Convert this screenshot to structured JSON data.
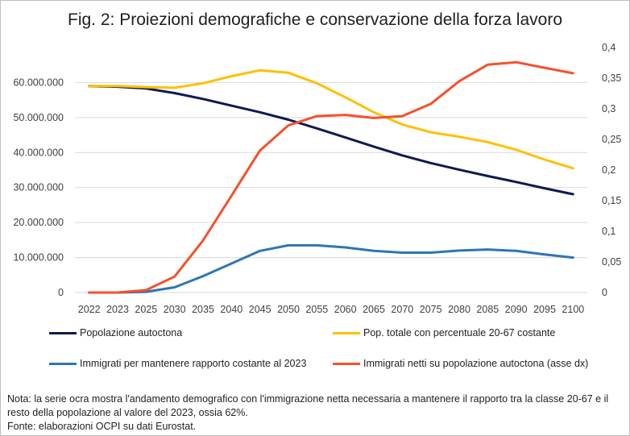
{
  "chart_data": {
    "type": "line",
    "title": "Fig. 2: Proiezioni demografiche e conservazione della forza lavoro",
    "x": [
      "2022",
      "2023",
      "2025",
      "2030",
      "2035",
      "2040",
      "2045",
      "2050",
      "2055",
      "2060",
      "2065",
      "2070",
      "2075",
      "2080",
      "2085",
      "2090",
      "2095",
      "2100"
    ],
    "y_left": {
      "ylim": [
        0,
        70000000
      ],
      "ticks": [
        0,
        10000000,
        20000000,
        30000000,
        40000000,
        50000000,
        60000000
      ],
      "tick_labels": [
        "0",
        "10.000.000",
        "20.000.000",
        "30.000.000",
        "40.000.000",
        "50.000.000",
        "60.000.000"
      ]
    },
    "y_right": {
      "ylim": [
        0,
        0.4
      ],
      "ticks": [
        0,
        0.05,
        0.1,
        0.15,
        0.2,
        0.25,
        0.3,
        0.35,
        0.4
      ],
      "tick_labels": [
        "0",
        "0,05",
        "0,1",
        "0,15",
        "0,2",
        "0,25",
        "0,3",
        "0,35",
        "0,4"
      ]
    },
    "grid": true,
    "legend_placement": "bottom",
    "series": [
      {
        "name": "Popolazione autoctona",
        "axis": "left",
        "color": "#0d1b4f",
        "values": [
          59000000,
          58800000,
          58300000,
          57000000,
          55300000,
          53400000,
          51500000,
          49400000,
          46900000,
          44300000,
          41700000,
          39200000,
          37000000,
          35100000,
          33300000,
          31600000,
          29800000,
          28100000
        ]
      },
      {
        "name": "Pop. totale con percentuale 20-67 costante",
        "axis": "left",
        "color": "#ffc000",
        "values": [
          59000000,
          59000000,
          58700000,
          58500000,
          59800000,
          61800000,
          63500000,
          62800000,
          59800000,
          55800000,
          51500000,
          48000000,
          45800000,
          44500000,
          43000000,
          40800000,
          38000000,
          35500000
        ]
      },
      {
        "name": "Immigrati per mantenere rapporto costante al 2023",
        "axis": "left",
        "color": "#2e75b6",
        "values": [
          0,
          0,
          200000,
          1500000,
          4700000,
          8300000,
          11900000,
          13500000,
          13500000,
          12900000,
          11900000,
          11400000,
          11400000,
          12000000,
          12300000,
          11900000,
          10900000,
          10000000
        ]
      },
      {
        "name": "Immigrati netti su popolazione autoctona (asse dx)",
        "axis": "right",
        "color": "#f4512c",
        "values": [
          0,
          0,
          0.004,
          0.026,
          0.085,
          0.158,
          0.232,
          0.273,
          0.288,
          0.29,
          0.285,
          0.288,
          0.308,
          0.345,
          0.372,
          0.376,
          0.367,
          0.358
        ]
      }
    ]
  },
  "note": {
    "line1": "Nota: la serie ocra mostra l'andamento demografico con l'immigrazione netta necessaria a mantenere il rapporto tra la classe 20-67 e il resto della popolazione al valore del 2023, ossia 62%.",
    "line2": "Fonte: elaborazioni OCPI su dati Eurostat."
  }
}
